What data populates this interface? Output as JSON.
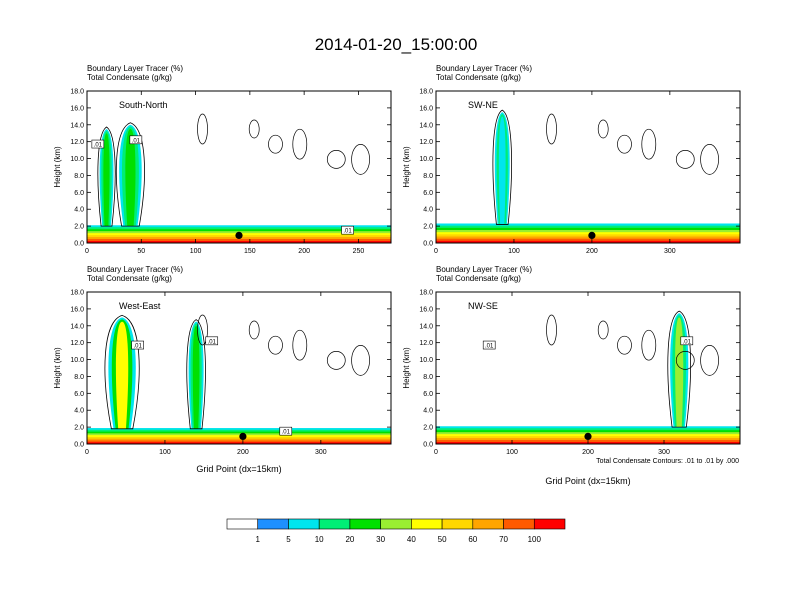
{
  "title": "2014-01-20_15:00:00",
  "panel_header": {
    "line1_label": "Boundary Layer Tracer",
    "line1_unit": "(%)",
    "line2_label": "Total Condensate",
    "line2_unit": "(g/kg)"
  },
  "contour_note": "Total Condensate Contours: .01 to .01 by .000",
  "contour_label": ".01",
  "colorbar": {
    "levels": [
      "1",
      "5",
      "10",
      "20",
      "30",
      "40",
      "50",
      "60",
      "70",
      "100"
    ],
    "colors": [
      "#ffffff",
      "#1e90ff",
      "#00e5ee",
      "#00ee76",
      "#00e000",
      "#9aee32",
      "#ffff00",
      "#ffd700",
      "#ffa500",
      "#ff5a00",
      "#ff0000"
    ]
  },
  "chart_data": [
    {
      "type": "heatmap",
      "panel": "South-North",
      "xlabel": "",
      "ylabel": "Height (km)",
      "xlim": [
        0,
        280
      ],
      "ylim": [
        0,
        18
      ],
      "xticks": [
        "0",
        "50",
        "100",
        "150",
        "200",
        "250"
      ],
      "yticks": [
        "0.0",
        "2.0",
        "4.0",
        "6.0",
        "8.0",
        "10.0",
        "12.0",
        "14.0",
        "16.0",
        "18.0"
      ],
      "marker_x": 140,
      "boundary_layer_top_km": 2.0,
      "tracer_plumes": [
        {
          "x_center": 18,
          "half_width": 8,
          "top_km": 13.5,
          "value": 20
        },
        {
          "x_center": 40,
          "half_width": 13,
          "top_km": 14.0,
          "value": 20
        }
      ],
      "contour_labels_x": [
        10,
        45,
        240
      ]
    },
    {
      "type": "heatmap",
      "panel": "SW-NE",
      "xlabel": "",
      "ylabel": "Height (km)",
      "xlim": [
        0,
        390
      ],
      "ylim": [
        0,
        18
      ],
      "xticks": [
        "0",
        "100",
        "200",
        "300"
      ],
      "yticks": [
        "0.0",
        "2.0",
        "4.0",
        "6.0",
        "8.0",
        "10.0",
        "12.0",
        "14.0",
        "16.0",
        "18.0"
      ],
      "marker_x": 200,
      "boundary_layer_top_km": 2.2,
      "tracer_plumes": [
        {
          "x_center": 85,
          "half_width": 12,
          "top_km": 15.5,
          "value": 5
        }
      ],
      "contour_labels_x": []
    },
    {
      "type": "heatmap",
      "panel": "West-East",
      "xlabel": "Grid Point (dx=15km)",
      "ylabel": "Height (km)",
      "xlim": [
        0,
        390
      ],
      "ylim": [
        0,
        18
      ],
      "xticks": [
        "0",
        "100",
        "200",
        "300"
      ],
      "yticks": [
        "0.0",
        "2.0",
        "4.0",
        "6.0",
        "8.0",
        "10.0",
        "12.0",
        "14.0",
        "16.0",
        "18.0"
      ],
      "marker_x": 200,
      "boundary_layer_top_km": 1.8,
      "tracer_plumes": [
        {
          "x_center": 45,
          "half_width": 22,
          "top_km": 15.0,
          "value": 40
        },
        {
          "x_center": 140,
          "half_width": 12,
          "top_km": 14.5,
          "value": 20
        }
      ],
      "contour_labels_x": [
        65,
        160,
        255
      ]
    },
    {
      "type": "heatmap",
      "panel": "NW-SE",
      "xlabel": "Grid Point (dx=15km)",
      "ylabel": "Height (km)",
      "xlim": [
        0,
        400
      ],
      "ylim": [
        0,
        18
      ],
      "xticks": [
        "0",
        "100",
        "200",
        "300"
      ],
      "yticks": [
        "0.0",
        "2.0",
        "4.0",
        "6.0",
        "8.0",
        "10.0",
        "12.0",
        "14.0",
        "16.0",
        "18.0"
      ],
      "marker_x": 200,
      "boundary_layer_top_km": 2.0,
      "tracer_plumes": [
        {
          "x_center": 320,
          "half_width": 15,
          "top_km": 15.5,
          "value": 30
        }
      ],
      "contour_labels_x": [
        70,
        330
      ]
    }
  ]
}
